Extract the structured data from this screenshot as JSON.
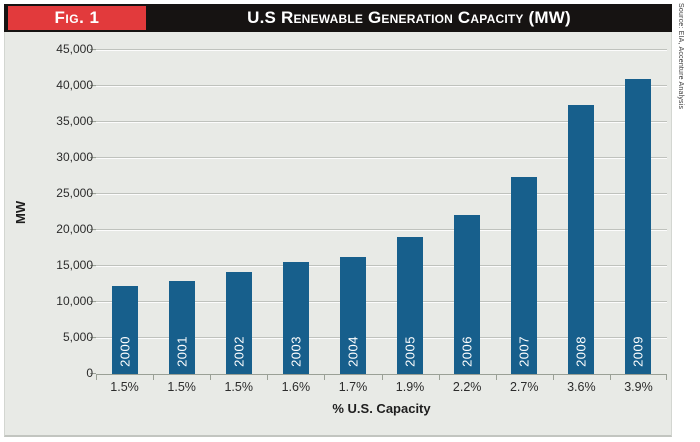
{
  "header": {
    "figure_label": "Fig. 1",
    "title": "U.S Renewable Generation Capacity (MW)"
  },
  "source_note": "Source: EIA, Accenture Analysis",
  "colors": {
    "bar": "#175f8c",
    "badge_red": "#e23a3c",
    "header_black": "#161312",
    "chart_bg": "#e8eae6"
  },
  "chart_data": {
    "type": "bar",
    "title": "U.S Renewable Generation Capacity (MW)",
    "categories": [
      "2000",
      "2001",
      "2002",
      "2003",
      "2004",
      "2005",
      "2006",
      "2007",
      "2008",
      "2009"
    ],
    "values": [
      12200,
      12900,
      14100,
      15500,
      16200,
      19000,
      22100,
      27400,
      37300,
      41000
    ],
    "x_tick_labels": [
      "1.5%",
      "1.5%",
      "1.5%",
      "1.6%",
      "1.7%",
      "1.9%",
      "2.2%",
      "2.7%",
      "3.6%",
      "3.9%"
    ],
    "xlabel": "% U.S. Capacity",
    "ylabel": "MW",
    "ylim": [
      0,
      45000
    ],
    "ytick_step": 5000,
    "ytick_labels": [
      "0",
      "5,000",
      "10,000",
      "15,000",
      "20,000",
      "25,000",
      "30,000",
      "35,000",
      "40,000",
      "45,000"
    ],
    "grid": true,
    "legend": "none"
  }
}
